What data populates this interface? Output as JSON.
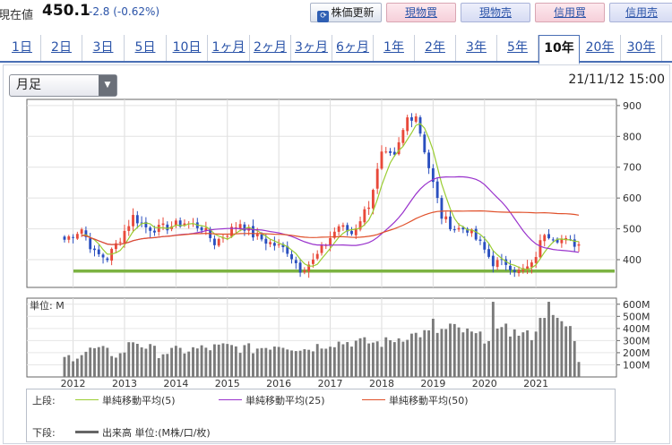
{
  "header": {
    "price_label": "現在値",
    "price": "450.1",
    "change": "-2.8 (-0.62%)",
    "buttons": {
      "refresh": "株価更新",
      "cash_buy": "現物買",
      "cash_sell": "現物売",
      "margin_buy": "信用買",
      "margin_sell": "信用売"
    }
  },
  "tabs": [
    {
      "label": "1日"
    },
    {
      "label": "2日"
    },
    {
      "label": "3日"
    },
    {
      "label": "5日"
    },
    {
      "label": "10日"
    },
    {
      "label": "1ヶ月"
    },
    {
      "label": "2ヶ月"
    },
    {
      "label": "3ヶ月"
    },
    {
      "label": "6ヶ月"
    },
    {
      "label": "1年"
    },
    {
      "label": "2年"
    },
    {
      "label": "3年"
    },
    {
      "label": "5年"
    },
    {
      "label": "10年",
      "active": true
    },
    {
      "label": "20年"
    },
    {
      "label": "30年"
    }
  ],
  "controls": {
    "period_select": "月足",
    "datetime": "21/11/12 15:00"
  },
  "legend": {
    "upper_label": "上段:",
    "lower_label": "下段:",
    "items": [
      {
        "label": "単純移動平均(5)",
        "color": "#9acd32"
      },
      {
        "label": "単純移動平均(25)",
        "color": "#9932cc"
      },
      {
        "label": "単純移動平均(50)",
        "color": "#e0502a"
      }
    ],
    "volume_label": "出来高 単位:(M株/口/枚)"
  },
  "chart_data": [
    {
      "type": "candlestick",
      "title": "",
      "x_labels": [
        "2012",
        "2013",
        "2014",
        "2015",
        "2016",
        "2017",
        "2018",
        "2019",
        "2020",
        "2021"
      ],
      "x_range": [
        "2011-11",
        "2021-11"
      ],
      "ylim": [
        310,
        920
      ],
      "yticks": [
        400,
        500,
        600,
        700,
        800,
        900
      ],
      "support_line": {
        "value": 363,
        "color": "#7cb342"
      },
      "colors": {
        "up": "#e8493a",
        "down": "#2a4fbf"
      },
      "ohlc_anchors": [
        {
          "x": "2011-11",
          "c": 465
        },
        {
          "x": "2012-03",
          "c": 500
        },
        {
          "x": "2012-06",
          "c": 420
        },
        {
          "x": "2012-09",
          "c": 405
        },
        {
          "x": "2012-12",
          "c": 470
        },
        {
          "x": "2013-03",
          "c": 540
        },
        {
          "x": "2013-06",
          "c": 505
        },
        {
          "x": "2013-09",
          "c": 500
        },
        {
          "x": "2014-03",
          "c": 520
        },
        {
          "x": "2014-07",
          "c": 505
        },
        {
          "x": "2014-10",
          "c": 455
        },
        {
          "x": "2015-04",
          "c": 520
        },
        {
          "x": "2015-07",
          "c": 480
        },
        {
          "x": "2015-10",
          "c": 460
        },
        {
          "x": "2016-03",
          "c": 430
        },
        {
          "x": "2016-06",
          "c": 370
        },
        {
          "x": "2016-09",
          "c": 395
        },
        {
          "x": "2017-03",
          "c": 510
        },
        {
          "x": "2017-06",
          "c": 485
        },
        {
          "x": "2017-10",
          "c": 580
        },
        {
          "x": "2018-01",
          "c": 740
        },
        {
          "x": "2018-04",
          "c": 730
        },
        {
          "x": "2018-07",
          "c": 860
        },
        {
          "x": "2018-09",
          "c": 870
        },
        {
          "x": "2018-12",
          "c": 700
        },
        {
          "x": "2019-03",
          "c": 540
        },
        {
          "x": "2019-06",
          "c": 500
        },
        {
          "x": "2019-09",
          "c": 500
        },
        {
          "x": "2019-12",
          "c": 450
        },
        {
          "x": "2020-03",
          "c": 390
        },
        {
          "x": "2020-06",
          "c": 390
        },
        {
          "x": "2020-09",
          "c": 360
        },
        {
          "x": "2020-12",
          "c": 380
        },
        {
          "x": "2021-03",
          "c": 490
        },
        {
          "x": "2021-06",
          "c": 470
        },
        {
          "x": "2021-09",
          "c": 455
        },
        {
          "x": "2021-11",
          "c": 450
        }
      ],
      "moving_averages": [
        {
          "name": "単純移動平均(5)",
          "period": 5,
          "color": "#9acd32"
        },
        {
          "name": "単純移動平均(25)",
          "period": 25,
          "color": "#9932cc"
        },
        {
          "name": "単純移動平均(50)",
          "period": 50,
          "color": "#e0502a"
        }
      ]
    },
    {
      "type": "bar",
      "title": "",
      "unit_label": "単位: M",
      "ylim": [
        0,
        650
      ],
      "yticks": [
        "100M",
        "200M",
        "300M",
        "400M",
        "500M",
        "600M"
      ],
      "ytick_values": [
        100,
        200,
        300,
        400,
        500,
        600
      ],
      "color": "#7a7a7a",
      "volume_anchors": [
        {
          "x": "2011-11",
          "v": 150
        },
        {
          "x": "2012-06",
          "v": 230
        },
        {
          "x": "2012-12",
          "v": 180
        },
        {
          "x": "2013-03",
          "v": 300
        },
        {
          "x": "2013-09",
          "v": 200
        },
        {
          "x": "2014-06",
          "v": 230
        },
        {
          "x": "2015-01",
          "v": 250
        },
        {
          "x": "2015-07",
          "v": 230
        },
        {
          "x": "2016-01",
          "v": 270
        },
        {
          "x": "2016-07",
          "v": 230
        },
        {
          "x": "2017-01",
          "v": 280
        },
        {
          "x": "2017-07",
          "v": 290
        },
        {
          "x": "2018-01",
          "v": 280
        },
        {
          "x": "2018-07",
          "v": 340
        },
        {
          "x": "2019-01",
          "v": 370
        },
        {
          "x": "2019-06",
          "v": 400
        },
        {
          "x": "2020-01",
          "v": 320
        },
        {
          "x": "2020-06",
          "v": 380
        },
        {
          "x": "2020-12",
          "v": 340
        },
        {
          "x": "2021-03",
          "v": 520
        },
        {
          "x": "2021-09",
          "v": 400
        },
        {
          "x": "2021-11",
          "v": 160
        }
      ],
      "spikes": [
        {
          "x": "2019-01",
          "v": 480
        },
        {
          "x": "2019-05",
          "v": 440
        },
        {
          "x": "2020-03",
          "v": 620
        },
        {
          "x": "2020-06",
          "v": 440
        },
        {
          "x": "2021-04",
          "v": 620
        },
        {
          "x": "2021-07",
          "v": 460
        },
        {
          "x": "2021-09",
          "v": 420
        }
      ]
    }
  ]
}
